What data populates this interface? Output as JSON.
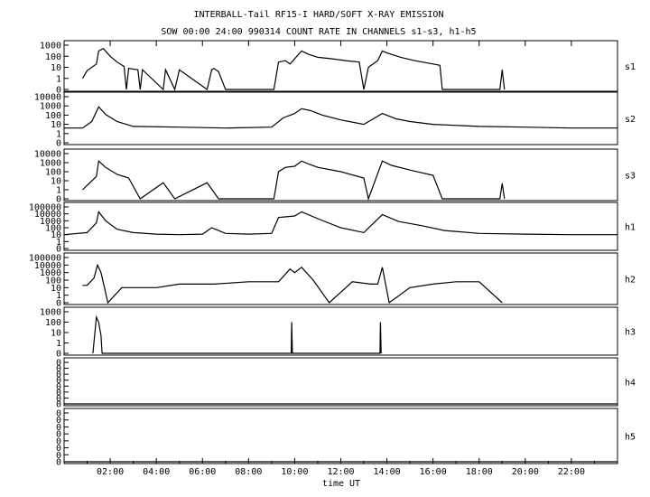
{
  "chart_data": {
    "type": "line",
    "title": "INTERBALL-Tail RF15-I HARD/SOFT X-RAY EMISSION",
    "subtitle": "SOW 00:00 24:00 990314  COUNT RATE IN CHANNELS s1-s3, h1-h5",
    "xlabel": "time UT",
    "xlim": [
      0,
      24
    ],
    "x_tick_labels": [
      "02:00",
      "04:00",
      "06:00",
      "08:00",
      "10:00",
      "12:00",
      "14:00",
      "16:00",
      "18:00",
      "20:00",
      "22:00"
    ],
    "y_scale": "log",
    "grid": false,
    "panels": [
      {
        "name": "s1",
        "y_tick_labels": [
          "1000",
          "100",
          "10",
          "1",
          "0"
        ],
        "series": [
          {
            "name": "s1",
            "x": [
              0.8,
              1.0,
              1.4,
              1.5,
              1.7,
              2.0,
              2.3,
              2.6,
              2.7,
              2.8,
              3.2,
              3.3,
              3.4,
              4.3,
              4.4,
              4.8,
              5.0,
              6.2,
              6.4,
              6.5,
              6.7,
              7.0,
              9.1,
              9.3,
              9.6,
              9.8,
              10.0,
              10.3,
              10.6,
              11.0,
              11.6,
              12.2,
              12.8,
              13.0,
              13.2,
              13.6,
              13.8,
              14.0,
              14.6,
              15.2,
              16.0,
              16.3,
              16.4,
              18.9,
              19.0,
              19.1
            ],
            "y": [
              1,
              5,
              20,
              300,
              500,
              100,
              30,
              12,
              0,
              8,
              6,
              0,
              6,
              0,
              6,
              0,
              6,
              0,
              6,
              8,
              4,
              0,
              0,
              30,
              40,
              20,
              60,
              300,
              150,
              80,
              60,
              40,
              30,
              0,
              10,
              40,
              300,
              200,
              80,
              40,
              20,
              15,
              0,
              0,
              6,
              0
            ]
          }
        ]
      },
      {
        "name": "s2",
        "y_tick_labels": [
          "10000",
          "1000",
          "100",
          "10",
          "1",
          "0"
        ],
        "series": [
          {
            "name": "s2",
            "x": [
              0.0,
              0.8,
              1.2,
              1.5,
              1.8,
              2.3,
              3.0,
              5.0,
              7.0,
              9.0,
              9.5,
              10.0,
              10.3,
              10.7,
              11.2,
              12.0,
              13.0,
              13.8,
              14.4,
              15.0,
              16.0,
              18.0,
              20.0,
              22.0,
              24.0
            ],
            "y": [
              4,
              4,
              20,
              800,
              120,
              20,
              6,
              5,
              4,
              5,
              50,
              150,
              500,
              300,
              100,
              30,
              10,
              150,
              40,
              20,
              10,
              6,
              5,
              4,
              4
            ]
          }
        ]
      },
      {
        "name": "s3",
        "y_tick_labels": [
          "10000",
          "1000",
          "100",
          "10",
          "1",
          "0"
        ],
        "series": [
          {
            "name": "s3",
            "x": [
              0.8,
              1.0,
              1.4,
              1.5,
              1.8,
              2.3,
              2.8,
              3.3,
              4.3,
              4.8,
              6.2,
              6.7,
              9.1,
              9.3,
              9.6,
              10.0,
              10.3,
              10.6,
              11.0,
              12.0,
              13.0,
              13.2,
              13.8,
              14.2,
              15.0,
              16.0,
              16.4,
              18.9,
              19.0,
              19.1
            ],
            "y": [
              1,
              3,
              30,
              1500,
              300,
              50,
              20,
              0,
              6,
              0,
              6,
              0,
              0,
              100,
              300,
              400,
              1500,
              700,
              300,
              100,
              20,
              0,
              1500,
              500,
              150,
              40,
              0,
              0,
              5,
              0
            ]
          }
        ]
      },
      {
        "name": "h1",
        "y_tick_labels": [
          "100000",
          "10000",
          "1000",
          "100",
          "10",
          "1",
          "0"
        ],
        "series": [
          {
            "name": "h1",
            "x": [
              0.0,
              1.0,
              1.4,
              1.5,
              1.8,
              2.3,
              3.0,
              4.0,
              5.0,
              6.0,
              6.4,
              7.0,
              8.0,
              9.0,
              9.3,
              10.0,
              10.3,
              11.0,
              12.0,
              13.0,
              13.8,
              14.5,
              15.5,
              16.5,
              18.0,
              20.0,
              22.0,
              24.0
            ],
            "y": [
              10,
              20,
              500,
              20000,
              1000,
              60,
              20,
              12,
              10,
              12,
              100,
              15,
              12,
              15,
              3000,
              5000,
              20000,
              2000,
              100,
              20,
              8000,
              800,
              200,
              40,
              15,
              12,
              10,
              10
            ]
          }
        ]
      },
      {
        "name": "h2",
        "y_tick_labels": [
          "100000",
          "10000",
          "1000",
          "100",
          "10",
          "1",
          "0"
        ],
        "series": [
          {
            "name": "h2",
            "x": [
              0.8,
              1.0,
              1.3,
              1.45,
              1.6,
              1.9,
              2.5,
              4.0,
              5.0,
              6.5,
              8.0,
              9.0,
              9.3,
              9.8,
              10.0,
              10.3,
              10.8,
              11.5,
              12.5,
              13.3,
              13.6,
              13.8,
              14.1,
              15.0,
              16.0,
              17.0,
              18.0,
              19.0
            ],
            "y": [
              20,
              20,
              200,
              10000,
              1000,
              0,
              10,
              10,
              30,
              30,
              60,
              60,
              60,
              3000,
              1000,
              5000,
              100,
              0,
              60,
              30,
              30,
              5000,
              0,
              10,
              30,
              60,
              60,
              0
            ]
          }
        ]
      },
      {
        "name": "h3",
        "y_tick_labels": [
          "1000",
          "100",
          "10",
          "1",
          "0"
        ],
        "series": [
          {
            "name": "h3",
            "x": [
              1.25,
              1.4,
              1.5,
              1.6,
              1.65,
              9.85,
              9.87,
              9.9,
              13.7,
              13.72,
              13.75
            ],
            "y": [
              0,
              300,
              100,
              5,
              0,
              0,
              100,
              0,
              0,
              100,
              0
            ]
          }
        ]
      },
      {
        "name": "h4",
        "y_tick_labels": [
          "0",
          "0",
          "0",
          "0",
          "0",
          "0",
          "0",
          "0"
        ],
        "series": [
          {
            "name": "h4",
            "x": [
              0,
              24
            ],
            "y": [
              0,
              0
            ]
          }
        ]
      },
      {
        "name": "h5",
        "y_tick_labels": [
          "0",
          "0",
          "0",
          "0",
          "0",
          "0",
          "0",
          "0"
        ],
        "series": [
          {
            "name": "h5",
            "x": [
              0,
              24
            ],
            "y": [
              0,
              0
            ]
          }
        ]
      }
    ]
  }
}
